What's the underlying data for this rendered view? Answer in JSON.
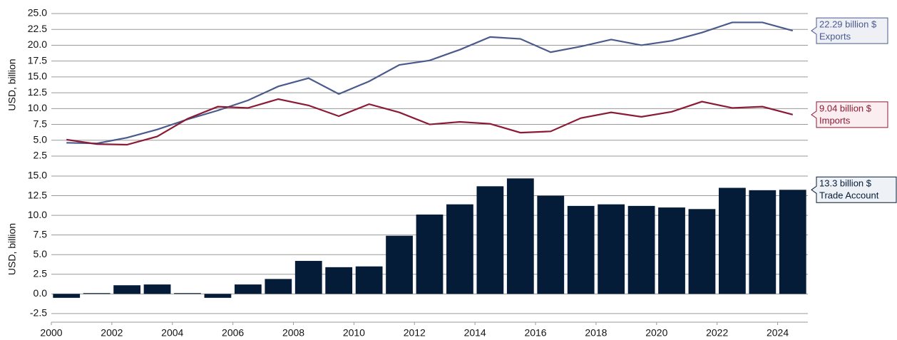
{
  "chart_data": [
    {
      "type": "line",
      "ylabel": "USD, billion",
      "x": [
        2000.5,
        2001.5,
        2002.5,
        2003.5,
        2004.5,
        2005.5,
        2006.5,
        2007.5,
        2008.5,
        2009.5,
        2010.5,
        2011.5,
        2012.5,
        2013.5,
        2014.5,
        2015.5,
        2016.5,
        2017.5,
        2018.5,
        2019.5,
        2020.5,
        2021.5,
        2022.5,
        2023.5,
        2024.5
      ],
      "xlim": [
        2000,
        2025
      ],
      "series": [
        {
          "name": "Exports",
          "color": "#4a5a8c",
          "last_label": "22.29 billion $",
          "values": [
            4.6,
            4.5,
            5.4,
            6.7,
            8.3,
            9.7,
            11.3,
            13.5,
            14.8,
            12.3,
            14.3,
            16.9,
            17.6,
            19.3,
            21.3,
            21.0,
            18.9,
            19.8,
            20.9,
            20.0,
            20.7,
            22.0,
            23.6,
            23.6,
            22.29
          ]
        },
        {
          "name": "Imports",
          "color": "#8b1a35",
          "last_label": "9.04 billion $",
          "values": [
            5.1,
            4.4,
            4.3,
            5.6,
            8.4,
            10.3,
            10.1,
            11.5,
            10.5,
            8.8,
            10.7,
            9.4,
            7.5,
            7.9,
            7.6,
            6.2,
            6.4,
            8.5,
            9.4,
            8.7,
            9.5,
            11.1,
            10.1,
            10.3,
            9.04
          ]
        }
      ],
      "ylim": [
        2.5,
        25
      ],
      "yticks": [
        2.5,
        {
          "value": 5,
          "label": "5.0"
        },
        7.5,
        {
          "value": 10,
          "label": "10.0"
        },
        12.5,
        {
          "value": 15,
          "label": "15.0"
        },
        17.5,
        {
          "value": 20,
          "label": "20.0"
        },
        22.5,
        {
          "value": 25,
          "label": "25.0"
        }
      ],
      "grid": true
    },
    {
      "type": "bar",
      "ylabel": "USD, billion",
      "x": [
        2000.5,
        2001.5,
        2002.5,
        2003.5,
        2004.5,
        2005.5,
        2006.5,
        2007.5,
        2008.5,
        2009.5,
        2010.5,
        2011.5,
        2012.5,
        2013.5,
        2014.5,
        2015.5,
        2016.5,
        2017.5,
        2018.5,
        2019.5,
        2020.5,
        2021.5,
        2022.5,
        2023.5,
        2024.5
      ],
      "xlim": [
        2000,
        2025
      ],
      "xticks": [
        2000,
        2002,
        2004,
        2006,
        2008,
        2010,
        2012,
        2014,
        2016,
        2018,
        2020,
        2022,
        2024
      ],
      "series": [
        {
          "name": "Trade Account",
          "color": "#041c38",
          "last_label": "13.3 billion $",
          "values": [
            -0.5,
            0.1,
            1.1,
            1.2,
            0.1,
            -0.5,
            1.2,
            1.9,
            4.2,
            3.4,
            3.5,
            7.4,
            10.1,
            11.4,
            13.7,
            14.7,
            12.5,
            11.2,
            11.4,
            11.2,
            11.0,
            10.8,
            13.5,
            13.2,
            13.25
          ]
        }
      ],
      "ylim": [
        -3.6,
        15
      ],
      "yticks": [
        -2.5,
        {
          "value": 0,
          "label": "0.0"
        },
        2.5,
        {
          "value": 5,
          "label": "5.0"
        },
        7.5,
        {
          "value": 10,
          "label": "10.0"
        },
        12.5,
        {
          "value": 15,
          "label": "15.0"
        }
      ],
      "grid": true
    }
  ]
}
